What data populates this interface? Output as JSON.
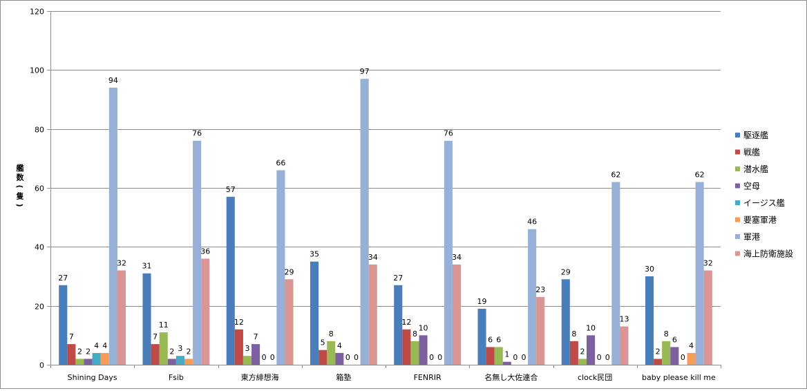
{
  "chart_data": {
    "type": "bar",
    "title": "",
    "xlabel": "",
    "ylabel": "艦数(隻)",
    "ylim": [
      0,
      120
    ],
    "yticks": [
      0,
      20,
      40,
      60,
      80,
      100,
      120
    ],
    "grid": true,
    "legend_position": "right",
    "categories": [
      "Shining Days",
      "Fsib",
      "東方緋想海",
      "箱塾",
      "FENRIR",
      "名無し大佐連合",
      "clock民団",
      "baby please kill me"
    ],
    "series": [
      {
        "name": "駆逐艦",
        "color": "#4a7ebb",
        "values": [
          27,
          31,
          57,
          35,
          27,
          19,
          29,
          30
        ]
      },
      {
        "name": "戦艦",
        "color": "#be4b48",
        "values": [
          7,
          7,
          12,
          5,
          12,
          6,
          8,
          2
        ]
      },
      {
        "name": "潜水艦",
        "color": "#98b954",
        "values": [
          2,
          11,
          3,
          8,
          8,
          6,
          2,
          8
        ]
      },
      {
        "name": "空母",
        "color": "#7d60a0",
        "values": [
          2,
          2,
          7,
          4,
          10,
          1,
          10,
          6
        ]
      },
      {
        "name": "イージス艦",
        "color": "#46aac5",
        "values": [
          4,
          3,
          0,
          0,
          0,
          0,
          0,
          0
        ]
      },
      {
        "name": "要塞軍港",
        "color": "#f59d56",
        "values": [
          4,
          2,
          0,
          0,
          0,
          0,
          0,
          4
        ]
      },
      {
        "name": "軍港",
        "color": "#97b0d8",
        "values": [
          94,
          76,
          66,
          97,
          76,
          46,
          62,
          62
        ]
      },
      {
        "name": "海上防衛施設",
        "color": "#da9694",
        "values": [
          32,
          36,
          29,
          34,
          34,
          23,
          13,
          32
        ]
      }
    ]
  }
}
